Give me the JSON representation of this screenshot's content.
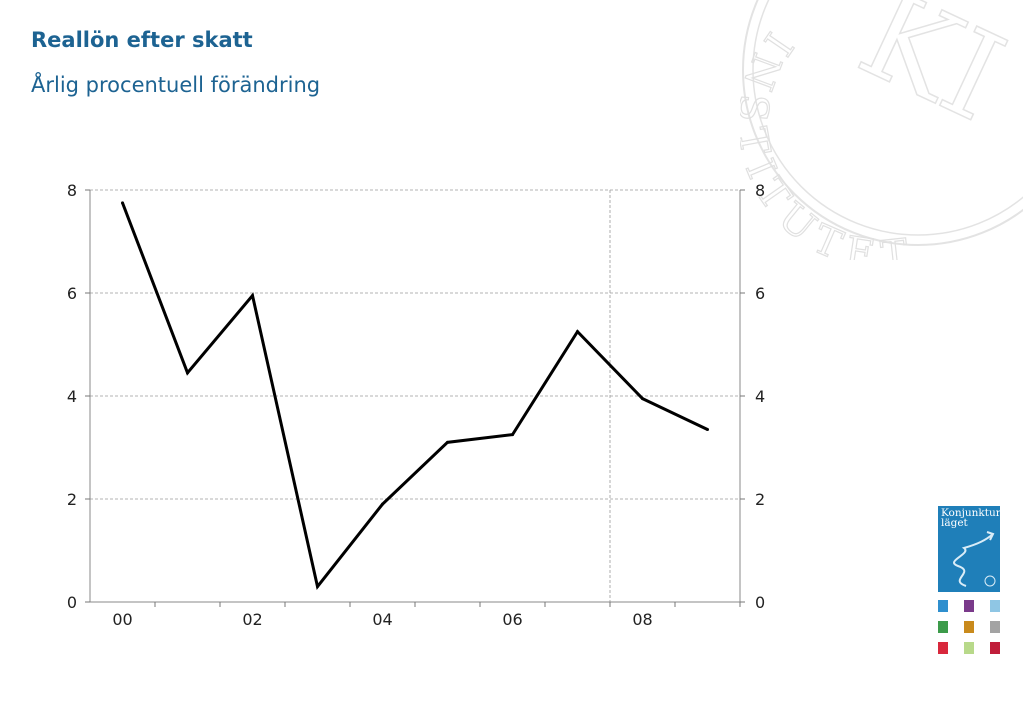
{
  "header": {
    "title": "Reallön efter skatt",
    "subtitle": "Årlig procentuell förändring"
  },
  "logo": {
    "seal_text": "INSTITUTET",
    "badge_text": "Konjunktur\nläget"
  },
  "chart_data": {
    "type": "line",
    "title": "Reallön efter skatt",
    "subtitle": "Årlig procentuell förändring",
    "x": [
      2000,
      2001,
      2002,
      2003,
      2004,
      2005,
      2006,
      2007,
      2008,
      2009
    ],
    "series": [
      {
        "values": [
          7.75,
          4.45,
          5.95,
          0.3,
          1.9,
          3.1,
          3.25,
          5.25,
          3.95,
          3.35
        ]
      }
    ],
    "x_tick_labels": [
      "00",
      "02",
      "04",
      "06",
      "08"
    ],
    "y_ticks": [
      0,
      2,
      4,
      6,
      8
    ],
    "ylim": [
      0,
      8
    ],
    "grid": true,
    "forecast_line_after": 2007.5,
    "colors": {
      "line": "#000000",
      "grid": "#9a9a9a"
    }
  },
  "thumbnails": {
    "colors": [
      "#2f8fce",
      "#7a3a8a",
      "#8fc6e4",
      "#3c9b4a",
      "#c98a1c",
      "#a3a3a3",
      "#d8283c",
      "#b8d98a",
      "#c01e3a"
    ]
  }
}
